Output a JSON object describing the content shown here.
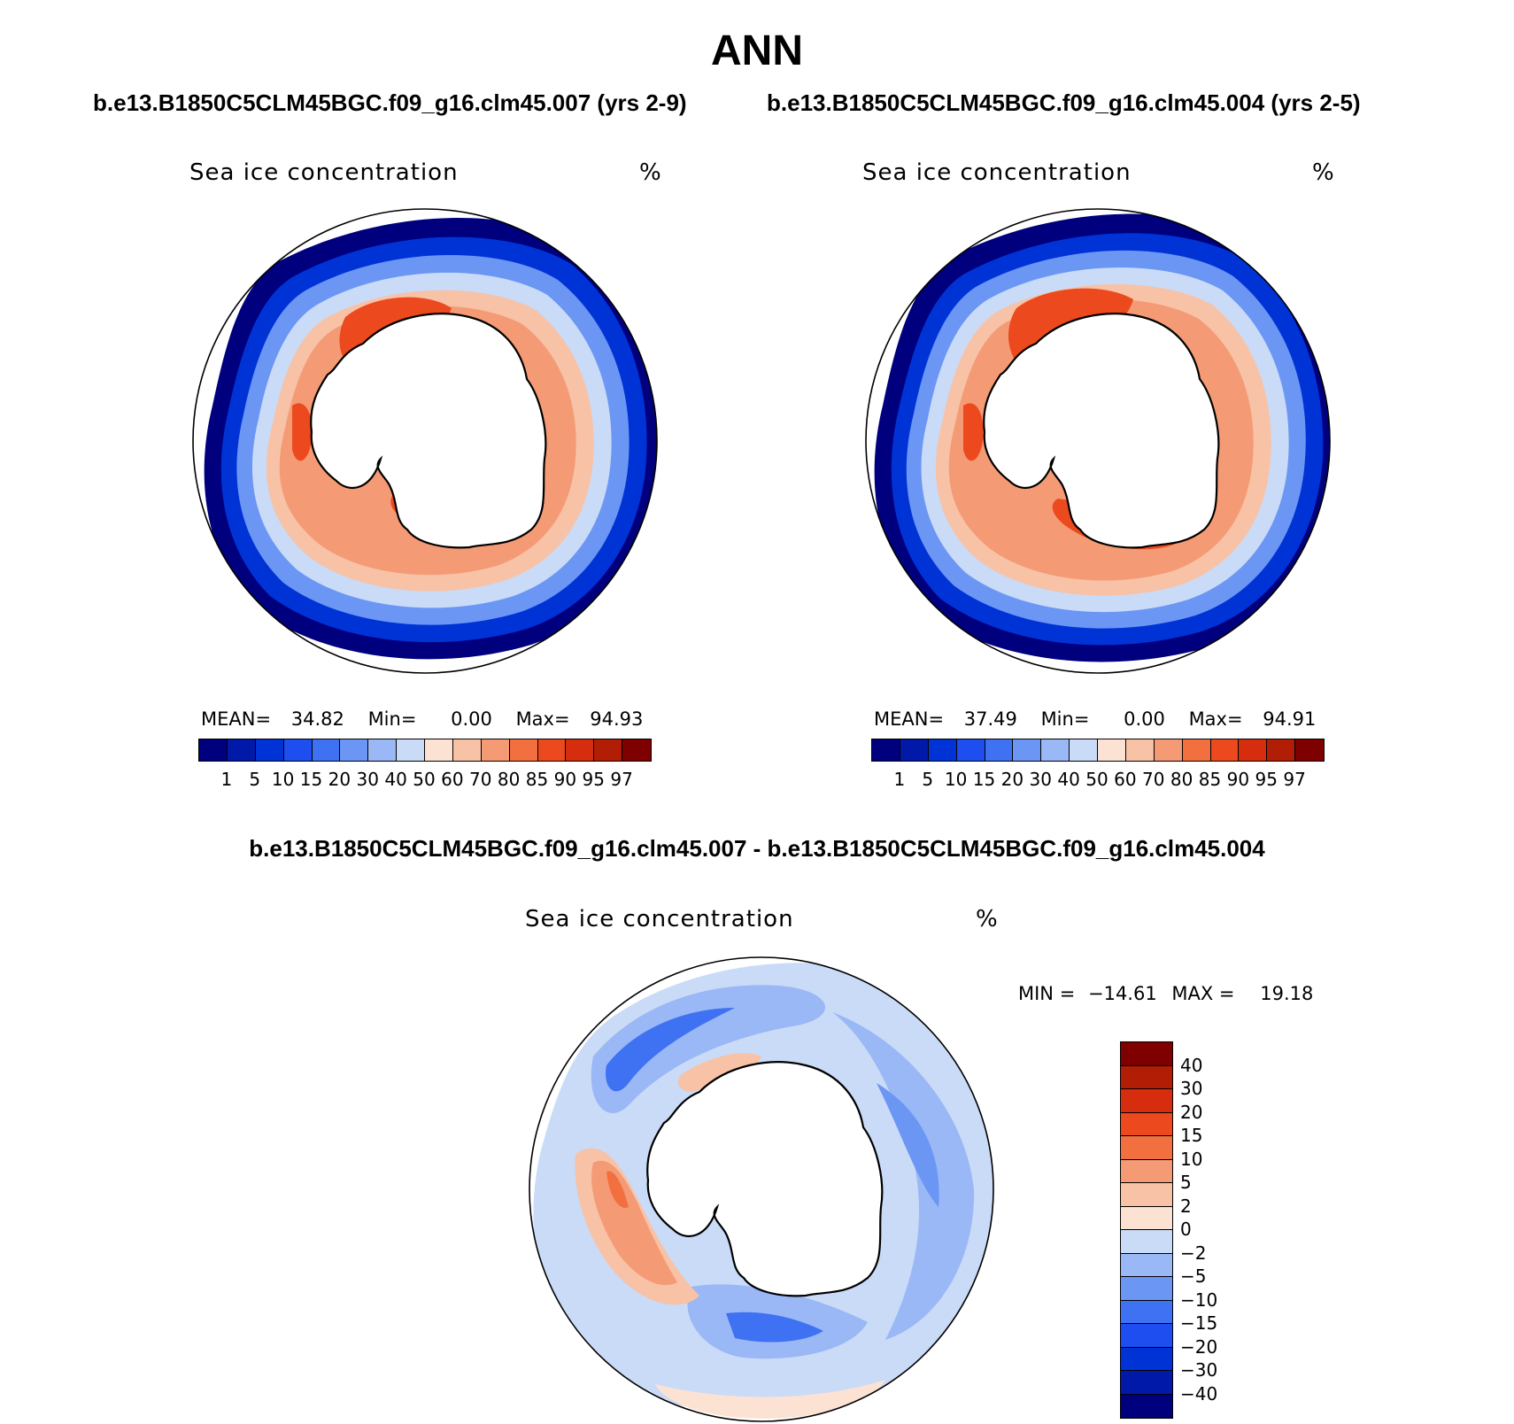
{
  "title": "ANN",
  "cases": {
    "left": "b.e13.B1850C5CLM45BGC.f09_g16.clm45.007 (yrs 2-9)",
    "right": "b.e13.B1850C5CLM45BGC.f09_g16.clm45.004 (yrs 2-5)",
    "diff": "b.e13.B1850C5CLM45BGC.f09_g16.clm45.007 - b.e13.B1850C5CLM45BGC.f09_g16.clm45.004"
  },
  "variable": {
    "name": "Sea ice concentration",
    "units": "%"
  },
  "panels": {
    "left": {
      "mean_label": "MEAN=",
      "mean": "34.82",
      "min_label": "Min=",
      "min": "0.00",
      "max_label": "Max=",
      "max": "94.93"
    },
    "right": {
      "mean_label": "MEAN=",
      "mean": "37.49",
      "min_label": "Min=",
      "min": "0.00",
      "max_label": "Max=",
      "max": "94.91"
    },
    "diff": {
      "min_label": "MIN =",
      "min": "−14.61",
      "max_label": "MAX =",
      "max": "19.18"
    }
  },
  "colorbar_abs": {
    "levels": [
      "1",
      "5",
      "10",
      "15",
      "20",
      "30",
      "40",
      "50",
      "60",
      "70",
      "80",
      "85",
      "90",
      "95",
      "97"
    ],
    "colors": [
      "#00007f",
      "#0019a8",
      "#0033d6",
      "#1f4ef0",
      "#3f72f2",
      "#6b96f4",
      "#9ab7f6",
      "#c9dbf7",
      "#fbe2d3",
      "#f8c2a6",
      "#f49b76",
      "#f2703f",
      "#ec4a1e",
      "#d52d0d",
      "#b21d06",
      "#7f0000"
    ]
  },
  "colorbar_diff": {
    "levels": [
      "40",
      "30",
      "20",
      "15",
      "10",
      "5",
      "2",
      "0",
      "−2",
      "−5",
      "−10",
      "−15",
      "−20",
      "−30",
      "−40"
    ],
    "colors": [
      "#7f0000",
      "#b21d06",
      "#d52d0d",
      "#ec4a1e",
      "#f2703f",
      "#f49b76",
      "#f8c2a6",
      "#fbe2d3",
      "#c9dbf7",
      "#9ab7f6",
      "#6b96f4",
      "#3f72f2",
      "#1f4ef0",
      "#0033d6",
      "#0019a8",
      "#00007f"
    ]
  }
}
